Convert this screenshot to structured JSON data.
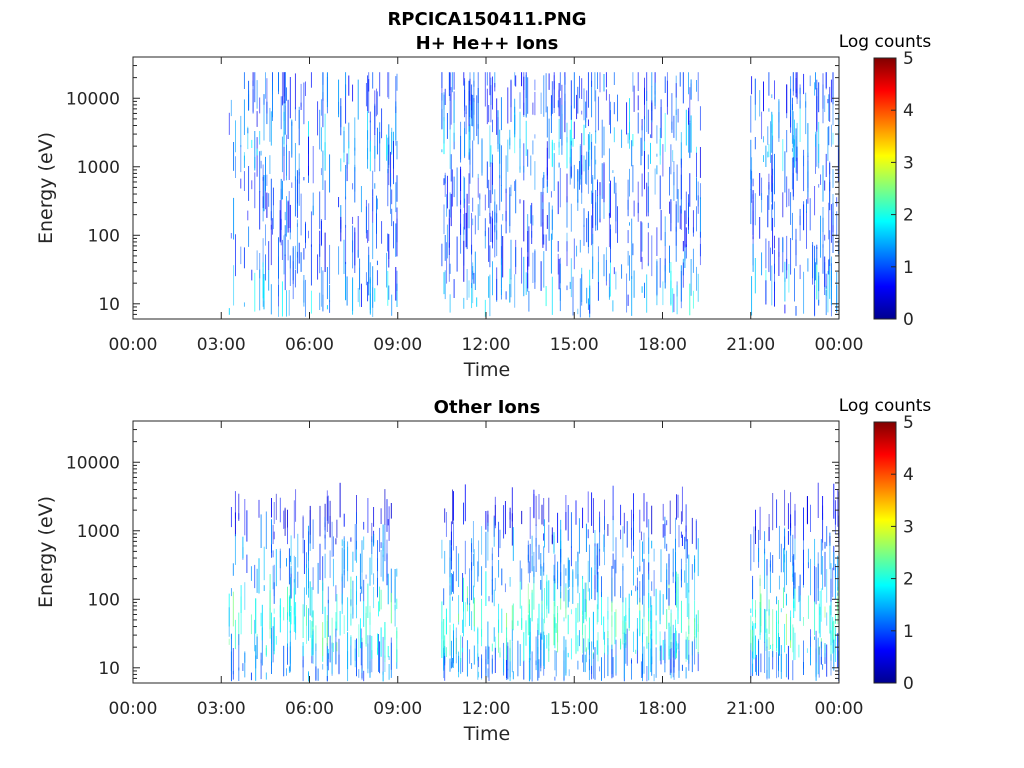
{
  "figure": {
    "title_line1": "RPCICA150411.PNG"
  },
  "colors": {
    "colormap": [
      "#00008f",
      "#0000ff",
      "#00ffff",
      "#ffff00",
      "#ff0000",
      "#800000"
    ],
    "axis": "#262626"
  },
  "chart_data": [
    {
      "type": "heatmap",
      "title": "H+ He++ Ions",
      "xlabel": "Time",
      "ylabel": "Energy (eV)",
      "x_ticks": [
        "00:00",
        "03:00",
        "06:00",
        "09:00",
        "12:00",
        "15:00",
        "18:00",
        "21:00",
        "00:00"
      ],
      "x_range_hours": [
        0,
        24
      ],
      "y_scale": "log",
      "y_ticks": [
        "10",
        "100",
        "1000",
        "10000"
      ],
      "y_range": [
        6,
        40000
      ],
      "colorbar": {
        "label": "Log counts",
        "range": [
          0,
          5
        ],
        "ticks": [
          "0",
          "1",
          "2",
          "3",
          "4",
          "5"
        ]
      },
      "data_intervals_hours": [
        [
          3.2,
          9.0
        ],
        [
          10.5,
          19.3
        ],
        [
          21.0,
          24.0
        ]
      ],
      "typical_log_counts": 1.0,
      "band_notes": "sparse counts across 10 eV - 20 keV, enhanced band near 1-2 keV"
    },
    {
      "type": "heatmap",
      "title": "Other Ions",
      "xlabel": "Time",
      "ylabel": "Energy (eV)",
      "x_ticks": [
        "00:00",
        "03:00",
        "06:00",
        "09:00",
        "12:00",
        "15:00",
        "18:00",
        "21:00",
        "00:00"
      ],
      "x_range_hours": [
        0,
        24
      ],
      "y_scale": "log",
      "y_ticks": [
        "10",
        "100",
        "1000",
        "10000"
      ],
      "y_range": [
        6,
        40000
      ],
      "colorbar": {
        "label": "Log counts",
        "range": [
          0,
          5
        ],
        "ticks": [
          "0",
          "1",
          "2",
          "3",
          "4",
          "5"
        ]
      },
      "data_intervals_hours": [
        [
          3.2,
          9.0
        ],
        [
          10.5,
          19.3
        ],
        [
          21.0,
          24.0
        ]
      ],
      "typical_log_counts": 1.5,
      "band_notes": "dense counts 10 eV - 1 keV, peak log counts ~2-2.5 near 15-60 eV"
    }
  ]
}
